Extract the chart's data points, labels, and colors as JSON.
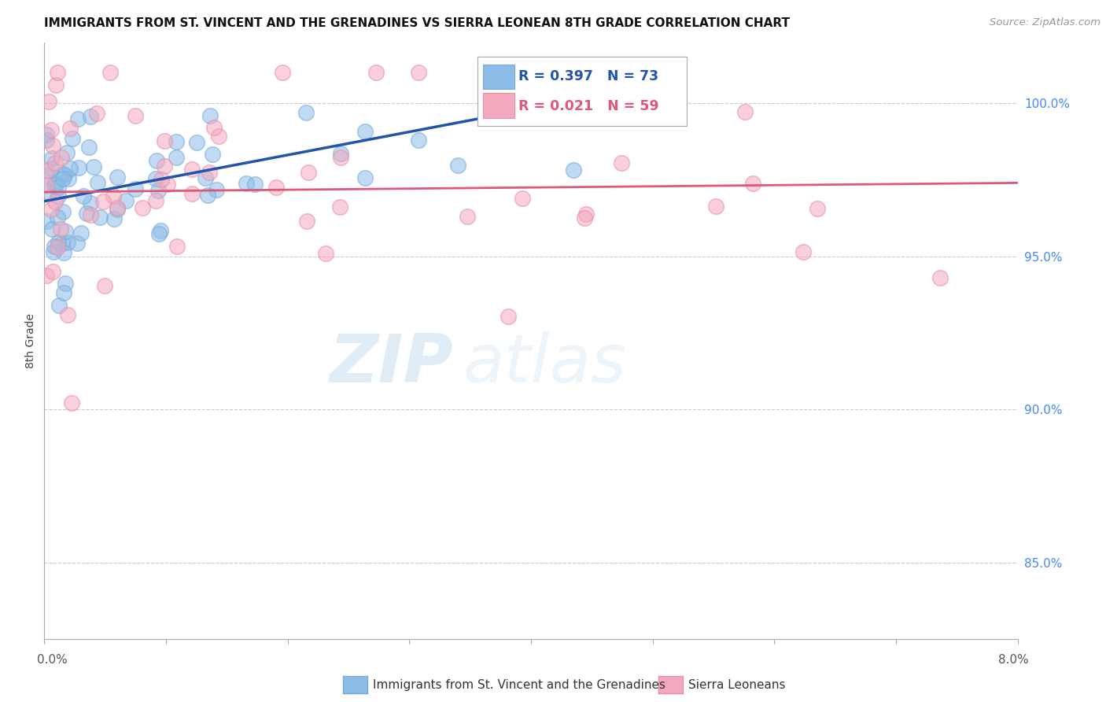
{
  "title": "IMMIGRANTS FROM ST. VINCENT AND THE GRENADINES VS SIERRA LEONEAN 8TH GRADE CORRELATION CHART",
  "source": "Source: ZipAtlas.com",
  "ylabel": "8th Grade",
  "xmin": 0.0,
  "xmax": 8.0,
  "ymin": 82.5,
  "ymax": 102.0,
  "blue_R": 0.397,
  "blue_N": 73,
  "pink_R": 0.021,
  "pink_N": 59,
  "blue_color": "#8bbde8",
  "pink_color": "#f4a8be",
  "blue_edge_color": "#7aaad8",
  "pink_edge_color": "#e890a8",
  "blue_line_color": "#2255aa",
  "pink_line_color": "#e05878",
  "legend_label_blue": "Immigrants from St. Vincent and the Grenadines",
  "legend_label_pink": "Sierra Leoneans",
  "watermark_zip": "ZIP",
  "watermark_atlas": "atlas",
  "right_yticks": [
    85.0,
    90.0,
    95.0,
    100.0
  ],
  "right_ytick_labels": [
    "85.0%",
    "90.0%",
    "95.0%",
    "100.0%"
  ],
  "blue_line_x0": 0.0,
  "blue_line_x1": 4.5,
  "blue_line_y0": 96.8,
  "blue_line_y1": 100.2,
  "pink_line_x0": 0.0,
  "pink_line_x1": 8.0,
  "pink_line_y0": 97.1,
  "pink_line_y1": 97.4
}
